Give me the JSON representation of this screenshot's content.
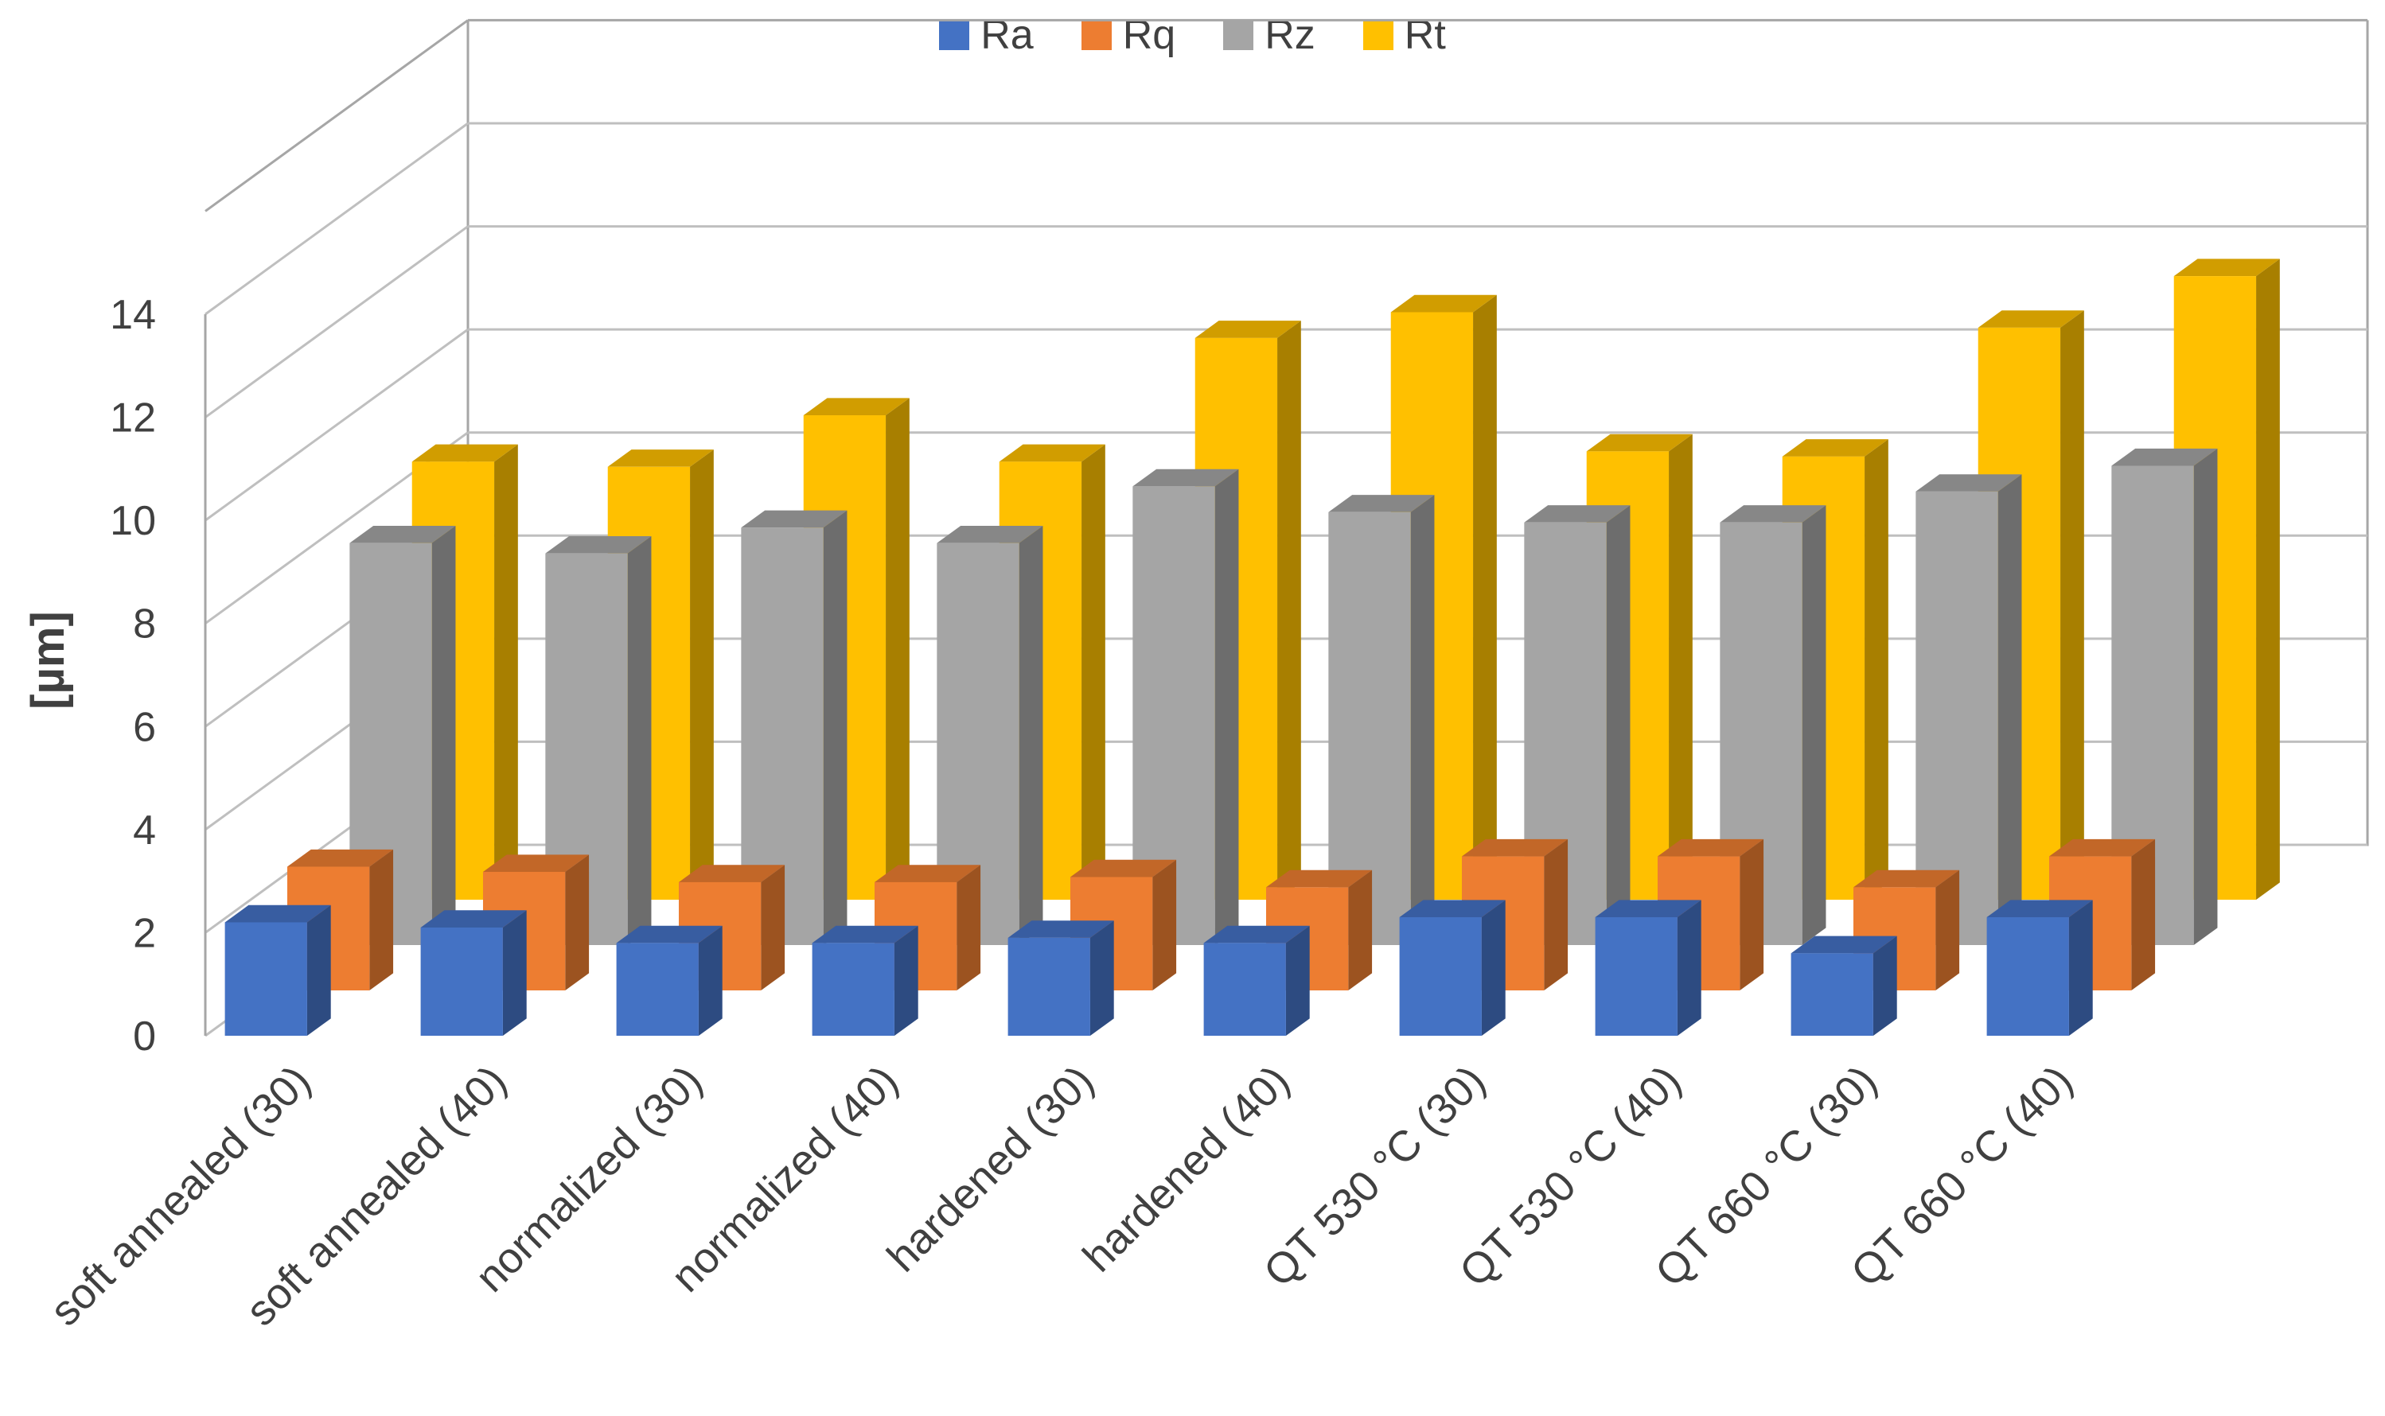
{
  "chart_data": {
    "type": "bar",
    "title": "",
    "xlabel": "",
    "ylabel": "[µm]",
    "ylim": [
      0,
      14
    ],
    "yticks": [
      0,
      2,
      4,
      6,
      8,
      10,
      12,
      14
    ],
    "grid": true,
    "legend_position": "top",
    "categories": [
      "soft annealed (30)",
      "soft annealed (40)",
      "normalized (30)",
      "normalized (40)",
      "hardened (30)",
      "hardened (40)",
      "QT 530 °C (30)",
      "QT 530 °C (40)",
      "QT 660 °C (30)",
      "QT 660 °C (40)"
    ],
    "series": [
      {
        "name": "Ra",
        "color": "#4472C4",
        "values": [
          2.2,
          2.1,
          1.8,
          1.8,
          1.9,
          1.8,
          2.3,
          2.3,
          1.6,
          2.3
        ]
      },
      {
        "name": "Rq",
        "color": "#ED7D31",
        "values": [
          2.4,
          2.3,
          2.1,
          2.1,
          2.2,
          2.0,
          2.6,
          2.6,
          2.0,
          2.6
        ]
      },
      {
        "name": "Rz",
        "color": "#A5A5A5",
        "values": [
          7.8,
          7.6,
          8.1,
          7.8,
          8.9,
          8.4,
          8.2,
          8.2,
          8.8,
          9.3
        ]
      },
      {
        "name": "Rt",
        "color": "#FFC000",
        "values": [
          8.5,
          8.4,
          9.4,
          8.5,
          10.9,
          11.4,
          8.7,
          8.6,
          11.1,
          12.1
        ]
      }
    ]
  }
}
